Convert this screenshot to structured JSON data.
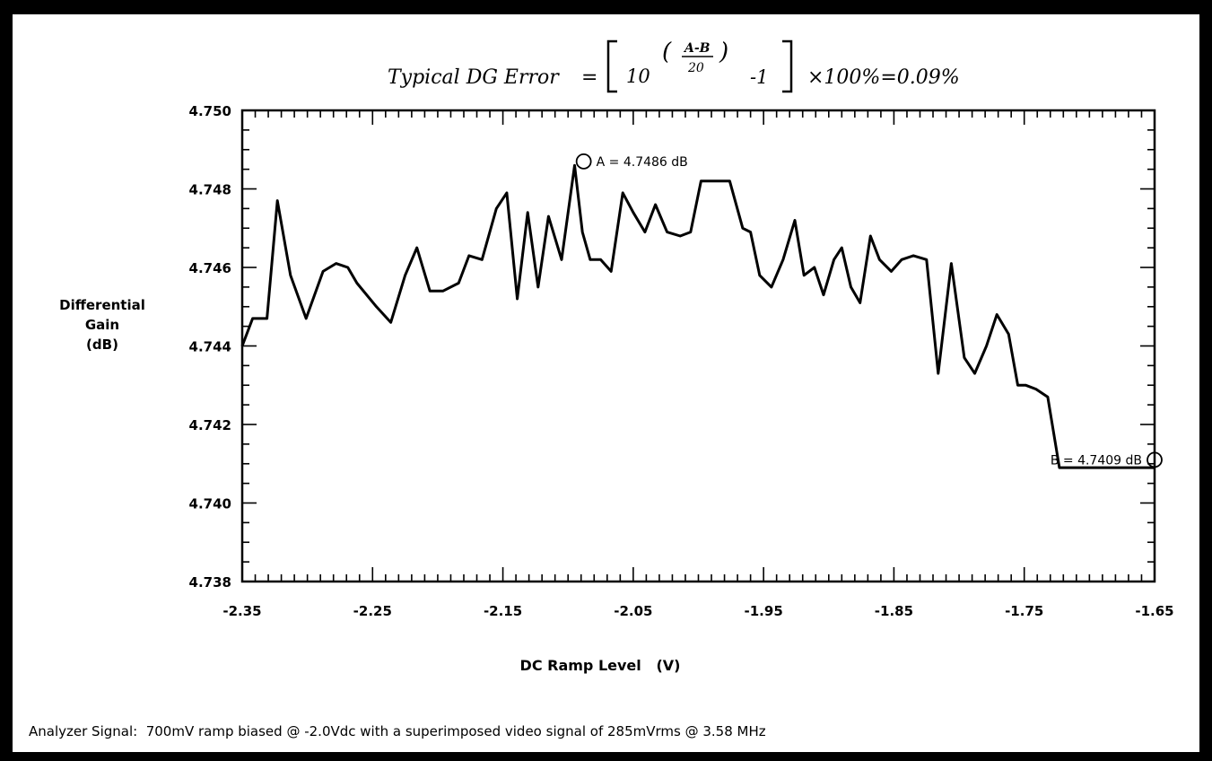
{
  "chart_data": {
    "type": "line",
    "formula": {
      "lhs": "Typical DG Error",
      "equals": "=",
      "base": "10",
      "exp_num": "A-B",
      "exp_den": "20",
      "minus_one": "-1",
      "tail": "×100%=0.09%"
    },
    "ylabel_lines": [
      "Differential",
      "Gain",
      "(dB)"
    ],
    "xlabel": "DC Ramp Level   (V)",
    "xlim": [
      -2.35,
      -1.65
    ],
    "ylim": [
      4.738,
      4.75
    ],
    "x_ticks": [
      -2.35,
      -2.25,
      -2.15,
      -2.05,
      -1.95,
      -1.85,
      -1.75,
      -1.65
    ],
    "x_tick_labels": [
      "-2.35",
      "-2.25",
      "-2.15",
      "-2.05",
      "-1.95",
      "-1.85",
      "-1.75",
      "-1.65"
    ],
    "y_ticks": [
      4.738,
      4.74,
      4.742,
      4.744,
      4.746,
      4.748,
      4.75
    ],
    "y_tick_labels": [
      "4.738",
      "4.740",
      "4.742",
      "4.744",
      "4.746",
      "4.748",
      "4.750"
    ],
    "series": [
      {
        "x": [
          -2.35,
          -2.342,
          -2.337,
          -2.331,
          -2.323,
          -2.313,
          -2.301,
          -2.288,
          -2.278,
          -2.269,
          -2.262,
          -2.247,
          -2.236,
          -2.225,
          -2.216,
          -2.206,
          -2.196,
          -2.184,
          -2.176,
          -2.166,
          -2.155,
          -2.147,
          -2.139,
          -2.131,
          -2.123,
          -2.115,
          -2.105,
          -2.095,
          -2.089,
          -2.083,
          -2.075,
          -2.067,
          -2.058,
          -2.05,
          -2.041,
          -2.033,
          -2.024,
          -2.014,
          -2.006,
          -1.998,
          -1.988,
          -1.976,
          -1.966,
          -1.96,
          -1.953,
          -1.944,
          -1.935,
          -1.926,
          -1.919,
          -1.911,
          -1.904,
          -1.896,
          -1.89,
          -1.883,
          -1.876,
          -1.868,
          -1.861,
          -1.852,
          -1.844,
          -1.835,
          -1.825,
          -1.816,
          -1.806,
          -1.796,
          -1.788,
          -1.779,
          -1.771,
          -1.762,
          -1.755,
          -1.749,
          -1.741,
          -1.732,
          -1.723,
          -1.714,
          -1.705,
          -1.695,
          -1.688,
          -1.681,
          -1.672,
          -1.664,
          -1.658,
          -1.65
        ],
        "y": [
          4.744,
          4.7447,
          4.7447,
          4.7447,
          4.7477,
          4.7458,
          4.7447,
          4.7459,
          4.7461,
          4.746,
          4.7456,
          4.745,
          4.7446,
          4.7458,
          4.7465,
          4.7454,
          4.7454,
          4.7456,
          4.7463,
          4.7462,
          4.7475,
          4.7479,
          4.7452,
          4.7474,
          4.7455,
          4.7473,
          4.7462,
          4.7486,
          4.7469,
          4.7462,
          4.7462,
          4.7459,
          4.7479,
          4.7474,
          4.7469,
          4.7476,
          4.7469,
          4.7468,
          4.7469,
          4.7482,
          4.7482,
          4.7482,
          4.747,
          4.7469,
          4.7458,
          4.7455,
          4.7462,
          4.7472,
          4.7458,
          4.746,
          4.7453,
          4.7462,
          4.7465,
          4.7455,
          4.7451,
          4.7468,
          4.7462,
          4.7459,
          4.7462,
          4.7463,
          4.7462,
          4.7433,
          4.7461,
          4.7437,
          4.7433,
          4.744,
          4.7448,
          4.7443,
          4.743,
          4.743,
          4.7429,
          4.7427,
          4.7409,
          4.7409,
          4.7409,
          4.7409,
          4.7409,
          4.7409,
          4.7409,
          4.7409,
          4.7409,
          4.7409
        ]
      }
    ],
    "annotations": [
      {
        "label": "A = 4.7486 dB",
        "x": -2.088,
        "y": 4.7487
      },
      {
        "label": "B = 4.7409 dB",
        "x": -1.65,
        "y": 4.7411
      }
    ],
    "footer": "Analyzer Signal:  700mV ramp biased @ -2.0Vdc with a superimposed video signal of 285mVrms @ 3.58 MHz"
  }
}
